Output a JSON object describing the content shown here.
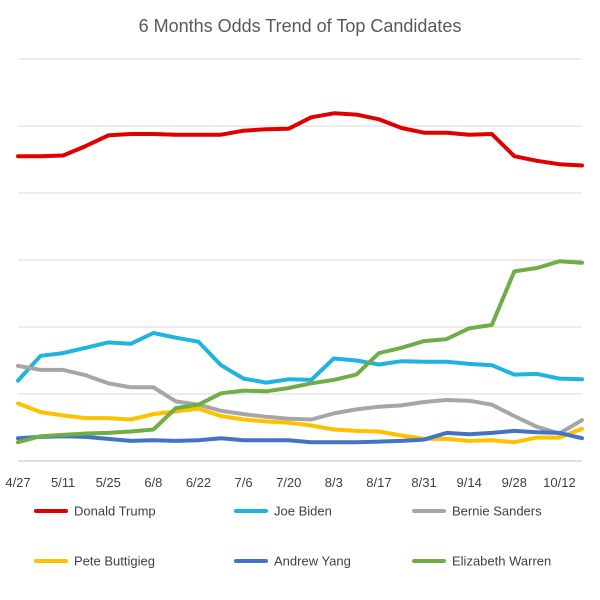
{
  "chart_data": {
    "type": "line",
    "title": "6 Months Odds Trend of Top Candidates",
    "xlabel": "",
    "ylabel": "",
    "grid": true,
    "legend_position": "bottom",
    "ylim": [
      0,
      6
    ],
    "x_tick_labels": [
      "4/27",
      "5/11",
      "5/25",
      "6/8",
      "6/22",
      "7/6",
      "7/20",
      "8/3",
      "8/17",
      "8/31",
      "9/14",
      "9/28",
      "10/12"
    ],
    "x": [
      "4/27",
      "5/4",
      "5/11",
      "5/18",
      "5/25",
      "6/1",
      "6/8",
      "6/15",
      "6/22",
      "6/29",
      "7/6",
      "7/13",
      "7/20",
      "7/27",
      "8/3",
      "8/10",
      "8/17",
      "8/24",
      "8/31",
      "9/7",
      "9/14",
      "9/21",
      "9/28",
      "10/5",
      "10/12",
      "10/19"
    ],
    "series": [
      {
        "name": "Donald Trump",
        "color": "#e00000",
        "values": [
          4.55,
          4.55,
          4.56,
          4.7,
          4.86,
          4.88,
          4.88,
          4.87,
          4.87,
          4.87,
          4.93,
          4.95,
          4.96,
          5.13,
          5.19,
          5.17,
          5.1,
          4.97,
          4.9,
          4.9,
          4.87,
          4.88,
          4.55,
          4.48,
          4.43,
          4.41
        ]
      },
      {
        "name": "Joe Biden",
        "color": "#1eb3e0",
        "values": [
          1.2,
          1.57,
          1.61,
          1.69,
          1.77,
          1.75,
          1.91,
          1.84,
          1.78,
          1.43,
          1.23,
          1.17,
          1.22,
          1.21,
          1.53,
          1.5,
          1.44,
          1.49,
          1.48,
          1.48,
          1.45,
          1.43,
          1.29,
          1.3,
          1.23,
          1.22
        ]
      },
      {
        "name": "Bernie Sanders",
        "color": "#a6a6a6",
        "values": [
          1.42,
          1.36,
          1.36,
          1.28,
          1.16,
          1.1,
          1.1,
          0.89,
          0.84,
          0.75,
          0.7,
          0.66,
          0.63,
          0.62,
          0.71,
          0.77,
          0.81,
          0.83,
          0.88,
          0.91,
          0.9,
          0.84,
          0.67,
          0.51,
          0.41,
          0.61
        ]
      },
      {
        "name": "Pete Buttigieg",
        "color": "#ffc000",
        "values": [
          0.86,
          0.73,
          0.68,
          0.64,
          0.64,
          0.62,
          0.7,
          0.74,
          0.78,
          0.67,
          0.62,
          0.59,
          0.57,
          0.53,
          0.47,
          0.45,
          0.44,
          0.38,
          0.33,
          0.33,
          0.3,
          0.31,
          0.28,
          0.35,
          0.35,
          0.48
        ]
      },
      {
        "name": "Andrew Yang",
        "color": "#4472c4",
        "values": [
          0.34,
          0.36,
          0.37,
          0.36,
          0.33,
          0.3,
          0.31,
          0.3,
          0.31,
          0.34,
          0.31,
          0.31,
          0.31,
          0.28,
          0.28,
          0.28,
          0.29,
          0.3,
          0.32,
          0.42,
          0.4,
          0.42,
          0.45,
          0.43,
          0.42,
          0.34
        ]
      },
      {
        "name": "Elizabeth Warren",
        "color": "#70ad47",
        "values": [
          0.28,
          0.37,
          0.39,
          0.41,
          0.42,
          0.44,
          0.47,
          0.79,
          0.84,
          1.01,
          1.05,
          1.04,
          1.09,
          1.16,
          1.21,
          1.29,
          1.61,
          1.69,
          1.79,
          1.82,
          1.98,
          2.03,
          2.83,
          2.88,
          2.98,
          2.96
        ]
      }
    ]
  }
}
